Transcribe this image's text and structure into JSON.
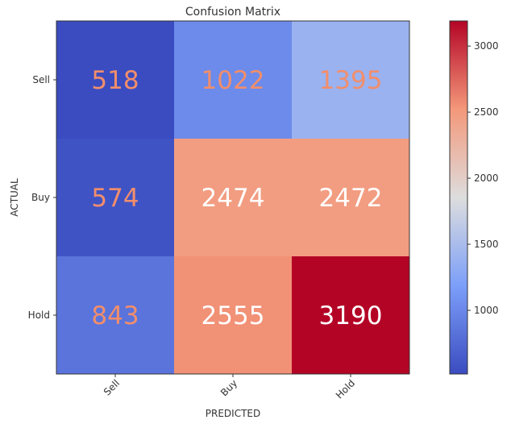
{
  "chart_data": {
    "type": "heatmap",
    "title": "Confusion Matrix",
    "xlabel": "PREDICTED",
    "ylabel": "ACTUAL",
    "x_categories": [
      "Sell",
      "Buy",
      "Hold"
    ],
    "y_categories": [
      "Sell",
      "Buy",
      "Hold"
    ],
    "values": [
      [
        518,
        1022,
        1395
      ],
      [
        574,
        2474,
        2472
      ],
      [
        843,
        2555,
        3190
      ]
    ],
    "colormap": "coolwarm",
    "value_range": [
      518,
      3190
    ],
    "colorbar_ticks": [
      1000,
      1500,
      2000,
      2500,
      3000
    ],
    "colors": {
      "annotation_light": "#f28e6b",
      "annotation_dark_bg": "#ffffff",
      "cmap_low": "#3b4cc0",
      "cmap_mid": "#dddddd",
      "cmap_high": "#b40426"
    }
  }
}
